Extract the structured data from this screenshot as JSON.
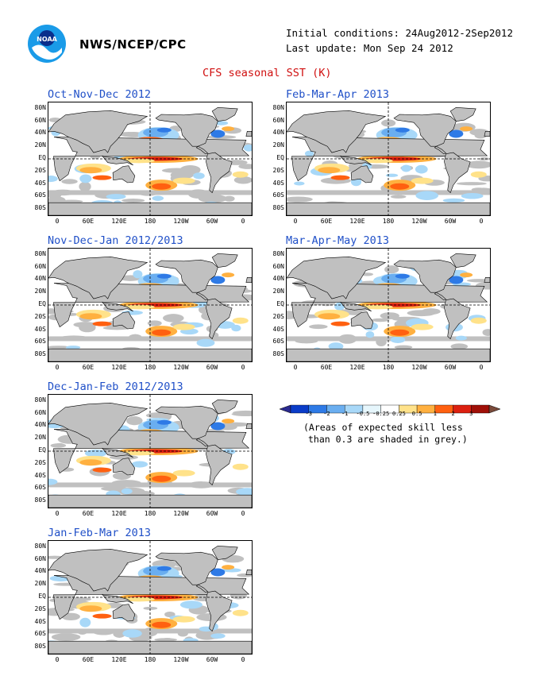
{
  "header": {
    "org": "NWS/NCEP/CPC",
    "initial_conditions": "Initial conditions: 24Aug2012-2Sep2012",
    "last_update": "Last update: Mon Sep 24 2012",
    "title": "CFS seasonal SST (K)",
    "logo_text": "NOAA"
  },
  "panels": [
    {
      "title": "Oct-Nov-Dec 2012"
    },
    {
      "title": "Nov-Dec-Jan 2012/2013"
    },
    {
      "title": "Dec-Jan-Feb 2012/2013"
    },
    {
      "title": "Jan-Feb-Mar 2013"
    },
    {
      "title": "Feb-Mar-Apr 2013"
    },
    {
      "title": "Mar-Apr-May 2013"
    }
  ],
  "axes": {
    "lat_labels": [
      "80N",
      "60N",
      "40N",
      "20N",
      "EQ",
      "20S",
      "40S",
      "60S",
      "80S"
    ],
    "lon_labels": [
      "0",
      "60E",
      "120E",
      "180",
      "120W",
      "60W",
      "0"
    ]
  },
  "colorbar": {
    "labels": [
      "-3",
      "-2",
      "-1",
      "-0.5",
      "-0.25",
      "0.25",
      "0.5",
      "1",
      "2",
      "3"
    ],
    "colors": [
      "#0a3cc8",
      "#2e7ae6",
      "#6aaef0",
      "#a8d8f8",
      "#e6f6fc",
      "#ffffff",
      "#ffe28a",
      "#ffb040",
      "#ff6010",
      "#dc2010",
      "#a01008"
    ],
    "note_line1": "(Areas of expected skill less",
    "note_line2": "than 0.3 are shaded in grey.)"
  },
  "map_colors": {
    "grey": "#c0c0c0",
    "light_blue": "#a8d8f8",
    "blue": "#6aaef0",
    "dark_blue": "#2e7ae6",
    "yellow": "#ffe28a",
    "orange": "#ffb040",
    "red_orange": "#ff6010",
    "red": "#dc2010"
  }
}
